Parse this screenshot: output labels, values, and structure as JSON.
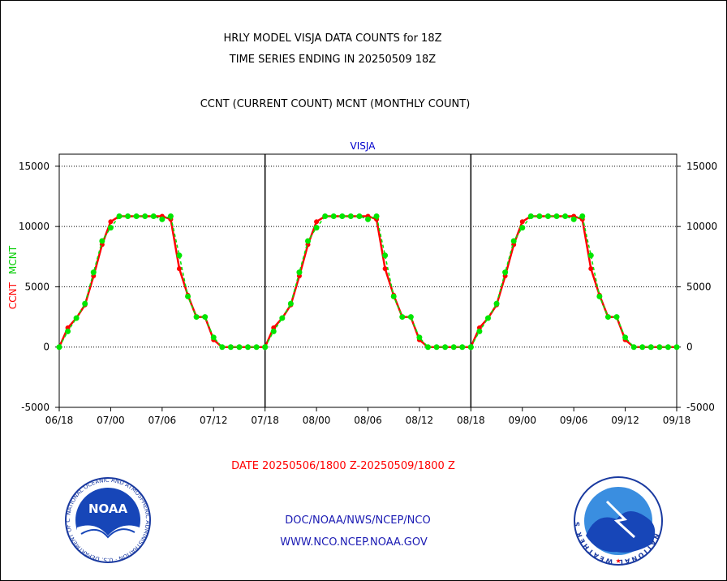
{
  "title": {
    "line1": "HRLY MODEL VISJA DATA COUNTS for 18Z",
    "line2": "TIME SERIES ENDING IN 20250509 18Z",
    "line3": "CCNT (CURRENT COUNT) MCNT (MONTHLY COUNT)"
  },
  "footer": {
    "date_range": "DATE 20250506/1800 Z-20250509/1800 Z",
    "org": "DOC/NOAA/NWS/NCEP/NCO",
    "url": "WWW.NCO.NCEP.NOAA.GOV",
    "noaa_logo_text": "NOAA",
    "noaa_ring_text": "NATIONAL OCEANIC AND ATMOSPHERIC ADMINISTRATION · U.S. DEPARTMENT OF COMMERCE ·",
    "nws_ring_text": "NATIONAL WEATHER SERVICE"
  },
  "colors": {
    "ccnt": "#ff0000",
    "mcnt": "#00e600",
    "panel_label": "#0000cc",
    "footer_blue": "#1a1ab3",
    "footer_red": "#ff0000"
  },
  "chart_data": {
    "type": "line",
    "title": "VISJA",
    "ylabel_series": [
      "CCNT",
      "MCNT"
    ],
    "ylim": [
      -5000,
      16000
    ],
    "yticks": [
      "15000",
      "10000",
      "5000",
      "0",
      "-5000"
    ],
    "ytick_values": [
      15000,
      10000,
      5000,
      0,
      -5000
    ],
    "grid": "dotted horizontal",
    "xtick_labels": [
      "06/18",
      "07/00",
      "07/06",
      "07/12",
      "07/18",
      "08/00",
      "08/06",
      "08/12",
      "08/18",
      "09/00",
      "09/06",
      "09/12",
      "09/18"
    ],
    "x": [
      0,
      1,
      2,
      3,
      4,
      5,
      6,
      7,
      8,
      9,
      10,
      11,
      12,
      13,
      14,
      15,
      16,
      17,
      18,
      19,
      20,
      21,
      22,
      23,
      24
    ],
    "series": [
      {
        "name": "CCNT",
        "values": [
          0,
          1600,
          2400,
          3500,
          5900,
          8500,
          10400,
          10850,
          10850,
          10850,
          10850,
          10850,
          10850,
          10600,
          6500,
          4300,
          2500,
          2500,
          600,
          0,
          0,
          0,
          0,
          0,
          0
        ]
      },
      {
        "name": "MCNT",
        "values": [
          0,
          1300,
          2400,
          3600,
          6200,
          8800,
          9900,
          10850,
          10850,
          10850,
          10850,
          10850,
          10600,
          10850,
          7600,
          4200,
          2500,
          2500,
          800,
          0,
          0,
          0,
          0,
          0,
          0
        ]
      }
    ],
    "cycle_count": 3
  }
}
